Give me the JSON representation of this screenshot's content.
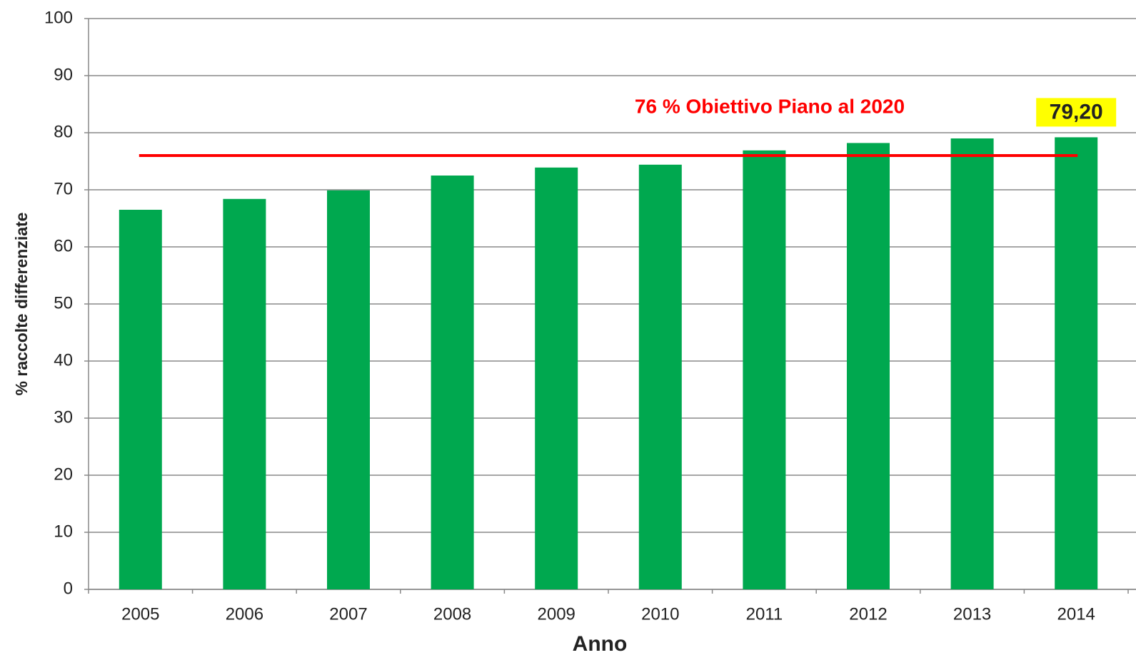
{
  "chart_data": {
    "type": "bar",
    "x_label": "Anno",
    "y_label": "% raccolte differenziate",
    "categories": [
      "2005",
      "2006",
      "2007",
      "2008",
      "2009",
      "2010",
      "2011",
      "2012",
      "2013",
      "2014"
    ],
    "values": [
      66.5,
      68.4,
      69.9,
      72.5,
      73.9,
      74.4,
      76.9,
      78.2,
      79.0,
      79.2
    ],
    "value_labels": [
      null,
      null,
      null,
      null,
      null,
      null,
      null,
      null,
      null,
      "79,20"
    ],
    "color": "#00a84f",
    "ylim": [
      0,
      100
    ],
    "yticks": [
      0,
      10,
      20,
      30,
      40,
      50,
      60,
      70,
      80,
      90,
      100
    ],
    "grid": true,
    "target": {
      "value": 76,
      "label": "76 % Obiettivo Piano al 2020",
      "color": "#ff0000"
    }
  }
}
